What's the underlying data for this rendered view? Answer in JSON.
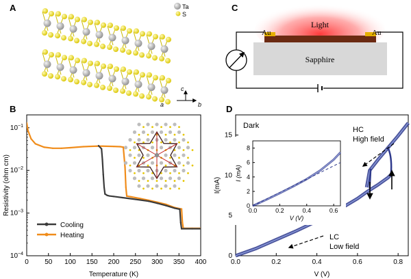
{
  "panels": {
    "A": {
      "label": "A",
      "legend": [
        {
          "symbol": "Ta",
          "color": "#b5b5b5"
        },
        {
          "symbol": "S",
          "color": "#f2e21b"
        }
      ],
      "axes": {
        "c": "c",
        "a": "a",
        "b": "b"
      }
    },
    "B": {
      "label": "B",
      "legend": [
        {
          "name": "Cooling",
          "color": "#3a3a3a"
        },
        {
          "name": "Heating",
          "color": "#f08c1a"
        }
      ]
    },
    "C": {
      "label": "C",
      "light": "Light",
      "electrode_left": "Au",
      "electrode_right": "Au",
      "substrate": "Sapphire"
    },
    "D": {
      "label": "D",
      "dark": "Dark",
      "hc_label": "HC",
      "high_field": "High field",
      "lc_label": "LC",
      "low_field": "Low field"
    }
  },
  "chart_data": [
    {
      "type": "line",
      "panel": "B",
      "xlabel": "Temperature (K)",
      "ylabel": "Resistivity (ohm cm)",
      "xlim": [
        0,
        400
      ],
      "ylim": [
        0.0001,
        0.2
      ],
      "yscale": "log",
      "xticks": [
        0,
        50,
        100,
        150,
        200,
        250,
        300,
        350,
        400
      ],
      "yticks": [
        {
          "value": 0.0001,
          "label": "10",
          "exp": "−4"
        },
        {
          "value": 0.001,
          "label": "10",
          "exp": "−3"
        },
        {
          "value": 0.01,
          "label": "10",
          "exp": "−2"
        },
        {
          "value": 0.1,
          "label": "10",
          "exp": "−1"
        }
      ],
      "legend_position": "bottom-left",
      "series": [
        {
          "name": "Cooling",
          "x": [
            165,
            172,
            174,
            176,
            178,
            180,
            185,
            190,
            200,
            220,
            250,
            280,
            300,
            320,
            340,
            352,
            354,
            356,
            380,
            400
          ],
          "y": [
            0.038,
            0.032,
            0.018,
            0.008,
            0.004,
            0.0028,
            0.0026,
            0.00252,
            0.00245,
            0.0023,
            0.0021,
            0.0019,
            0.0017,
            0.0015,
            0.0013,
            0.00123,
            0.0006,
            0.00043,
            0.00043,
            0.00043
          ]
        },
        {
          "name": "Heating",
          "x": [
            0,
            3,
            10,
            20,
            40,
            60,
            80,
            100,
            130,
            160,
            175,
            200,
            215,
            222,
            226,
            228,
            230,
            240,
            260,
            280,
            300,
            320,
            340,
            350,
            356,
            358,
            360,
            380,
            400
          ],
          "y": [
            0.13,
            0.085,
            0.055,
            0.042,
            0.035,
            0.033,
            0.033,
            0.034,
            0.036,
            0.037,
            0.037,
            0.0365,
            0.036,
            0.035,
            0.012,
            0.004,
            0.0025,
            0.0024,
            0.0022,
            0.002,
            0.0018,
            0.0016,
            0.00135,
            0.00128,
            0.00125,
            0.0006,
            0.00044,
            0.00044,
            0.00044
          ]
        }
      ]
    },
    {
      "type": "line",
      "panel": "D",
      "xlabel": "V (V)",
      "ylabel": "I(mA)",
      "xlim": [
        0,
        0.85
      ],
      "ylim": [
        0,
        17.5
      ],
      "xticks": [
        0.0,
        0.2,
        0.4,
        0.6,
        0.8
      ],
      "xtick_labels": [
        "0.0",
        "0.2",
        "0.4",
        "0.6",
        "0.8"
      ],
      "yticks": [
        0,
        5,
        10,
        15
      ],
      "series": [
        {
          "name": "LC",
          "x": [
            0,
            0.1,
            0.2,
            0.3,
            0.4,
            0.5,
            0.6,
            0.65,
            0.7,
            0.75,
            0.77
          ],
          "y": [
            0,
            0.9,
            2.0,
            3.1,
            4.3,
            5.6,
            7.1,
            8.0,
            8.8,
            9.7,
            10.2
          ]
        },
        {
          "name": "HC",
          "x": [
            0.645,
            0.66,
            0.7,
            0.75,
            0.8,
            0.85
          ],
          "y": [
            8.5,
            10.6,
            11.9,
            13.4,
            14.9,
            16.5
          ]
        }
      ],
      "inset": {
        "xlabel": "V (V)",
        "ylabel": "I (mA)",
        "xlim": [
          0,
          0.65
        ],
        "ylim": [
          0,
          9
        ],
        "xticks": [
          0.0,
          0.2,
          0.4,
          0.6
        ],
        "xtick_labels": [
          "0.0",
          "0.2",
          "0.4",
          "0.6"
        ],
        "yticks": [
          0,
          2,
          4,
          6,
          8
        ],
        "series": [
          {
            "name": "measured",
            "x": [
              0,
              0.1,
              0.2,
              0.3,
              0.4,
              0.5,
              0.6,
              0.65
            ],
            "y": [
              0,
              0.85,
              1.75,
              2.7,
              3.7,
              4.9,
              6.4,
              7.4
            ]
          },
          {
            "name": "linear",
            "style": "dashed",
            "x": [
              0,
              0.65
            ],
            "y": [
              0,
              6.0
            ]
          }
        ]
      }
    }
  ]
}
